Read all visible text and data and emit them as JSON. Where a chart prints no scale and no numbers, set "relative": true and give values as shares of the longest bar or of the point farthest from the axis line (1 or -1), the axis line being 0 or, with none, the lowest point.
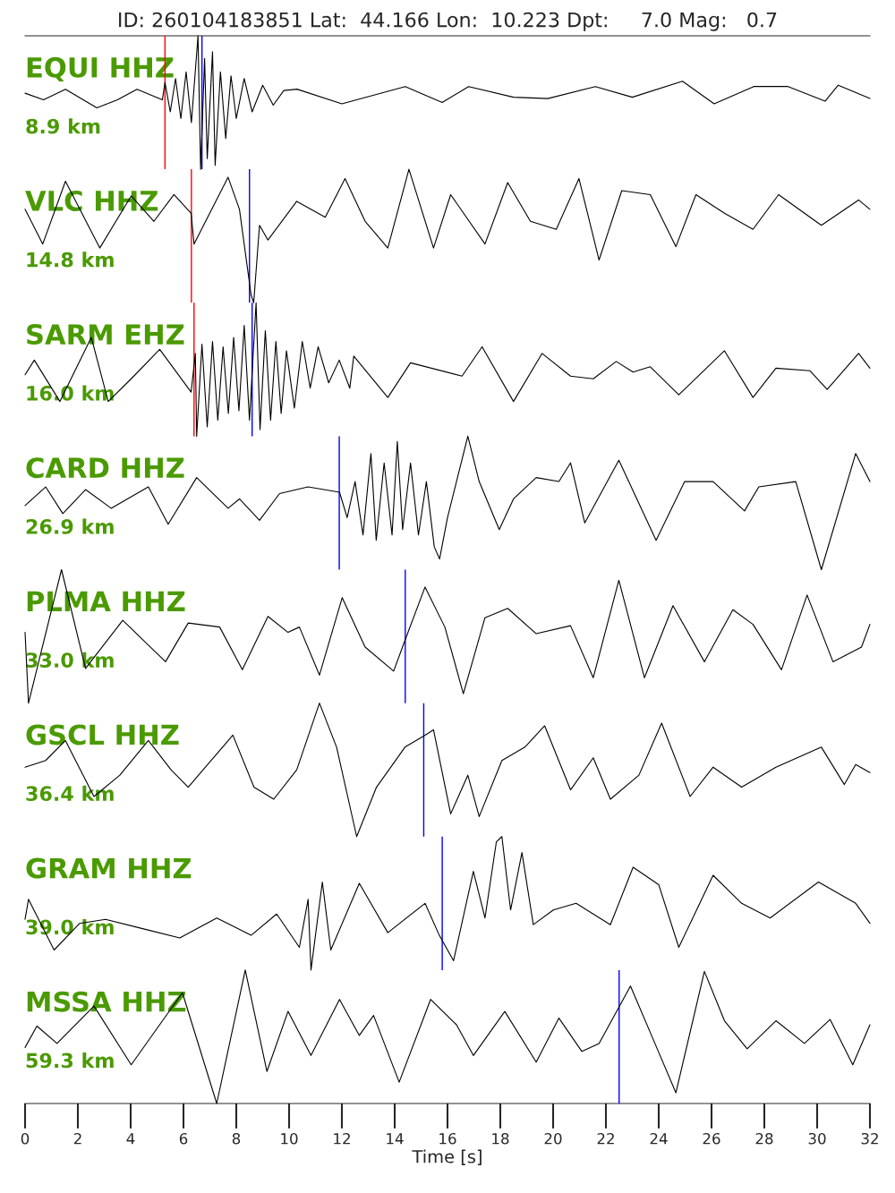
{
  "chart_data": [
    {
      "type": "line",
      "relative": true,
      "title": "EQUI HHZ",
      "subtitle": "8.9 km",
      "xticks": [
        0,
        2,
        4,
        6,
        8,
        10,
        12,
        14,
        16,
        18,
        20,
        22,
        24,
        26,
        28,
        30,
        32
      ],
      "annotations": [
        "ID: 260104183851 Lat:  44.166 Lon:  10.223 Dpt:     7.0 Mag:   0.7"
      ],
      "xlim": [
        0,
        32
      ],
      "tick_labels": false,
      "grid": false,
      "legend": false,
      "x": [
        0,
        0.7,
        1.53,
        2.72,
        3.5,
        4.24,
        5.2,
        5.3,
        5.5,
        5.7,
        5.9,
        6.1,
        6.3,
        6.55,
        6.65,
        6.8,
        6.9,
        7.1,
        7.2,
        7.4,
        7.6,
        7.8,
        8.0,
        8.3,
        8.6,
        9.0,
        9.4,
        9.8,
        10.3,
        12.0,
        14.4,
        15.8,
        16.8,
        18.5,
        19.8,
        21.6,
        23.0,
        24.9,
        26.1,
        27.6,
        28.9,
        30.3,
        30.8,
        32
      ],
      "series": [
        {
          "color": "#000000",
          "values": [
            0.57,
            0.52,
            0.6,
            0.46,
            0.52,
            0.6,
            0.52,
            0.65,
            0.43,
            0.68,
            0.38,
            0.73,
            0.35,
            1,
            0,
            0.83,
            0.08,
            0.88,
            0.03,
            0.73,
            0.23,
            0.7,
            0.38,
            0.68,
            0.43,
            0.63,
            0.48,
            0.59,
            0.6,
            0.49,
            0.62,
            0.5,
            0.62,
            0.54,
            0.53,
            0.62,
            0.54,
            0.66,
            0.49,
            0.62,
            0.62,
            0.51,
            0.63,
            0.53
          ]
        }
      ],
      "ref_lines": [
        {
          "axis": "x",
          "value": 5.3,
          "color": "#ff0000"
        },
        {
          "axis": "x",
          "value": 6.7,
          "color": "#0000ff"
        }
      ]
    },
    {
      "type": "line",
      "relative": true,
      "title": "VLC HHZ",
      "xticks": [
        0,
        2,
        4,
        6,
        8,
        10,
        12,
        14,
        16,
        18,
        20,
        22,
        24,
        26,
        28,
        30,
        32
      ],
      "subtitle": "14.8 km",
      "xlim": [
        0,
        32
      ],
      "tick_labels": false,
      "grid": false,
      "legend": false,
      "x": [
        0,
        0.67,
        1.53,
        2.83,
        4.02,
        4.88,
        5.64,
        6.29,
        6.4,
        7.69,
        8.12,
        8.56,
        8.66,
        8.88,
        9.2,
        10.29,
        11.37,
        12.12,
        12.88,
        13.74,
        14.54,
        15.47,
        16.12,
        17.42,
        18.28,
        19.14,
        20.12,
        20.98,
        21.74,
        22.6,
        23.68,
        24.65,
        25.41,
        26.49,
        27.57,
        28.54,
        30.16,
        31.57,
        32
      ],
      "series": [
        {
          "color": "#000000",
          "values": [
            0.7,
            0.44,
            0.91,
            0.41,
            0.8,
            0.61,
            0.81,
            0.67,
            0.44,
            0.94,
            0.7,
            0.06,
            0,
            0.58,
            0.47,
            0.76,
            0.64,
            0.93,
            0.61,
            0.41,
            1,
            0.41,
            0.81,
            0.44,
            0.9,
            0.61,
            0.55,
            0.93,
            0.32,
            0.84,
            0.81,
            0.42,
            0.81,
            0.67,
            0.55,
            0.81,
            0.58,
            0.77,
            0.7
          ]
        }
      ],
      "ref_lines": [
        {
          "axis": "x",
          "value": 6.3,
          "color": "#ff0000"
        },
        {
          "axis": "x",
          "value": 8.5,
          "color": "#0000ff"
        }
      ]
    },
    {
      "type": "line",
      "relative": true,
      "title": "SARM EHZ",
      "xticks": [
        0,
        2,
        4,
        6,
        8,
        10,
        12,
        14,
        16,
        18,
        20,
        22,
        24,
        26,
        28,
        30,
        32
      ],
      "subtitle": "16.0 km",
      "xlim": [
        0,
        32
      ],
      "tick_labels": false,
      "grid": false,
      "legend": false,
      "x": [
        0,
        0.35,
        1.32,
        2.51,
        3.15,
        4.02,
        5.1,
        6.29,
        6.45,
        6.5,
        6.7,
        6.9,
        7.1,
        7.3,
        7.5,
        7.7,
        7.9,
        8.1,
        8.3,
        8.5,
        8.75,
        8.9,
        9.1,
        9.3,
        9.5,
        9.7,
        9.9,
        10.2,
        10.5,
        10.8,
        11.1,
        11.5,
        11.9,
        12.3,
        12.45,
        13.74,
        14.6,
        16.55,
        17.31,
        18.5,
        19.58,
        20.66,
        21.52,
        22.39,
        23.03,
        23.68,
        24.76,
        26.49,
        27.57,
        28.44,
        29.73,
        30.38,
        31.57,
        32
      ],
      "series": [
        {
          "color": "#000000",
          "values": [
            0.46,
            0.57,
            0.26,
            0.74,
            0.26,
            0.43,
            0.65,
            0.33,
            0.62,
            0,
            0.69,
            0.07,
            0.71,
            0.12,
            0.67,
            0.17,
            0.74,
            0.19,
            0.83,
            0.12,
            1,
            0.05,
            0.79,
            0.12,
            0.71,
            0.17,
            0.64,
            0.21,
            0.71,
            0.36,
            0.67,
            0.4,
            0.57,
            0.36,
            0.6,
            0.29,
            0.55,
            0.45,
            0.67,
            0.26,
            0.62,
            0.45,
            0.43,
            0.56,
            0.48,
            0.52,
            0.31,
            0.64,
            0.29,
            0.51,
            0.49,
            0.35,
            0.62,
            0.51
          ]
        }
      ],
      "ref_lines": [
        {
          "axis": "x",
          "value": 6.4,
          "color": "#ff0000"
        },
        {
          "axis": "x",
          "value": 8.6,
          "color": "#0000ff"
        }
      ]
    },
    {
      "type": "line",
      "relative": true,
      "title": "CARD HHZ",
      "xticks": [
        0,
        2,
        4,
        6,
        8,
        10,
        12,
        14,
        16,
        18,
        20,
        22,
        24,
        26,
        28,
        30,
        32
      ],
      "subtitle": "26.9 km",
      "xlim": [
        0,
        32
      ],
      "tick_labels": false,
      "grid": false,
      "legend": false,
      "x": [
        0,
        0.78,
        1.43,
        2.29,
        3.26,
        4.67,
        5.42,
        6.5,
        7.69,
        8.12,
        8.88,
        9.64,
        10.72,
        11.91,
        12.2,
        12.5,
        12.8,
        13.1,
        13.3,
        13.6,
        13.9,
        14.1,
        14.3,
        14.6,
        14.9,
        15.2,
        15.5,
        15.7,
        16.0,
        16.77,
        17.2,
        17.96,
        18.5,
        19.36,
        20.22,
        20.66,
        21.2,
        22.49,
        23.9,
        24.98,
        26.06,
        27.25,
        27.79,
        29.19,
        30.16,
        31.46,
        32
      ],
      "series": [
        {
          "color": "#000000",
          "values": [
            0.48,
            0.62,
            0.42,
            0.6,
            0.46,
            0.62,
            0.34,
            0.69,
            0.46,
            0.53,
            0.37,
            0.57,
            0.62,
            0.58,
            0.39,
            0.66,
            0.26,
            0.87,
            0.22,
            0.8,
            0.26,
            0.96,
            0.3,
            0.8,
            0.26,
            0.66,
            0.17,
            0.08,
            0.39,
            1,
            0.66,
            0.3,
            0.53,
            0.69,
            0.66,
            0.8,
            0.35,
            0.82,
            0.22,
            0.66,
            0.66,
            0.44,
            0.62,
            0.66,
            0,
            0.87,
            0.66
          ]
        }
      ],
      "ref_lines": [
        {
          "axis": "x",
          "value": 11.9,
          "color": "#0000ff"
        }
      ]
    },
    {
      "type": "line",
      "relative": true,
      "title": "PLMA HHZ",
      "xticks": [
        0,
        2,
        4,
        6,
        8,
        10,
        12,
        14,
        16,
        18,
        20,
        22,
        24,
        26,
        28,
        30,
        32
      ],
      "subtitle": "33.0 km",
      "xlim": [
        0,
        32
      ],
      "tick_labels": false,
      "grid": false,
      "legend": false,
      "x": [
        0,
        0.13,
        1.38,
        2.29,
        3.7,
        5.32,
        6.18,
        7.37,
        8.23,
        9.2,
        9.96,
        10.39,
        11.15,
        12.01,
        12.88,
        13.96,
        14.39,
        15.15,
        15.9,
        16.6,
        17.42,
        18.28,
        19.36,
        20.66,
        21.52,
        22.49,
        23.46,
        24.54,
        25.73,
        26.81,
        27.57,
        28.65,
        29.62,
        30.6,
        31.68,
        32
      ],
      "series": [
        {
          "color": "#000000",
          "values": [
            0.53,
            0,
            1,
            0.26,
            0.62,
            0.31,
            0.6,
            0.57,
            0.25,
            0.65,
            0.53,
            0.57,
            0.21,
            0.79,
            0.42,
            0.24,
            0.47,
            0.87,
            0.57,
            0.07,
            0.64,
            0.71,
            0.52,
            0.58,
            0.19,
            0.92,
            0.19,
            0.73,
            0.31,
            0.7,
            0.59,
            0.25,
            0.81,
            0.31,
            0.42,
            0.59
          ]
        }
      ],
      "ref_lines": [
        {
          "axis": "x",
          "value": 14.4,
          "color": "#0000ff"
        }
      ]
    },
    {
      "type": "line",
      "relative": true,
      "title": "GSCL HHZ",
      "xticks": [
        0,
        2,
        4,
        6,
        8,
        10,
        12,
        14,
        16,
        18,
        20,
        22,
        24,
        26,
        28,
        30,
        32
      ],
      "subtitle": "36.4 km",
      "xlim": [
        0,
        32
      ],
      "tick_labels": false,
      "grid": false,
      "legend": false,
      "x": [
        0,
        0.78,
        1.53,
        2.61,
        3.59,
        4.67,
        5.53,
        6.18,
        6.83,
        7.87,
        8.67,
        9.42,
        10.29,
        11.15,
        11.8,
        12.56,
        13.31,
        14.39,
        15.15,
        15.47,
        16.12,
        16.77,
        17.2,
        18.06,
        18.93,
        19.68,
        20.66,
        21.52,
        22.17,
        23.25,
        24.11,
        25.19,
        26.06,
        27.14,
        28.44,
        30.16,
        31.03,
        31.46,
        32
      ],
      "series": [
        {
          "color": "#000000",
          "values": [
            0.52,
            0.57,
            0.72,
            0.3,
            0.46,
            0.72,
            0.5,
            0.37,
            0.52,
            0.76,
            0.37,
            0.28,
            0.5,
            1,
            0.67,
            0,
            0.37,
            0.67,
            0.76,
            0.8,
            0.17,
            0.46,
            0.15,
            0.57,
            0.67,
            0.83,
            0.35,
            0.59,
            0.28,
            0.46,
            0.85,
            0.3,
            0.52,
            0.37,
            0.52,
            0.67,
            0.39,
            0.54,
            0.48
          ]
        }
      ],
      "ref_lines": [
        {
          "axis": "x",
          "value": 15.1,
          "color": "#0000ff"
        }
      ]
    },
    {
      "type": "line",
      "relative": true,
      "title": "GRAM HHZ",
      "xticks": [
        0,
        2,
        4,
        6,
        8,
        10,
        12,
        14,
        16,
        18,
        20,
        22,
        24,
        26,
        28,
        30,
        32
      ],
      "subtitle": "39.0 km",
      "xlim": [
        0,
        32
      ],
      "tick_labels": false,
      "grid": false,
      "legend": false,
      "x": [
        0,
        0.13,
        1.1,
        2.07,
        3.05,
        4.45,
        5.86,
        7.26,
        8.56,
        9.53,
        10.39,
        10.72,
        10.83,
        11.26,
        11.58,
        12.66,
        13.74,
        15.15,
        15.69,
        16.23,
        16.98,
        17.42,
        17.85,
        18.06,
        18.39,
        18.82,
        19.25,
        20.01,
        20.87,
        22.17,
        23.03,
        24.0,
        24.76,
        26.06,
        27.14,
        28.22,
        30.05,
        31.46,
        32
      ],
      "series": [
        {
          "color": "#000000",
          "values": [
            0.38,
            0.53,
            0.15,
            0.35,
            0.38,
            0.31,
            0.24,
            0.39,
            0.26,
            0.42,
            0.17,
            0.53,
            0,
            0.66,
            0.15,
            0.65,
            0.28,
            0.5,
            0.26,
            0.07,
            0.74,
            0.39,
            0.96,
            1,
            0.45,
            0.88,
            0.34,
            0.45,
            0.5,
            0.34,
            0.77,
            0.64,
            0.17,
            0.71,
            0.5,
            0.39,
            0.66,
            0.5,
            0.35
          ]
        }
      ],
      "ref_lines": [
        {
          "axis": "x",
          "value": 15.8,
          "color": "#0000ff"
        }
      ]
    },
    {
      "type": "line",
      "relative": true,
      "title": "MSSA HHZ",
      "subtitle": "59.3 km",
      "xlabel": "Time [s]",
      "xlim": [
        0,
        32
      ],
      "tick_labels": "x",
      "grid": false,
      "legend": false,
      "x": [
        0,
        0.45,
        1.21,
        2.61,
        4.02,
        5.96,
        7.26,
        8.34,
        9.16,
        9.96,
        10.83,
        11.91,
        12.66,
        13.2,
        14.17,
        15.36,
        16.34,
        16.98,
        18.17,
        19.36,
        20.22,
        21.09,
        21.74,
        22.93,
        23.9,
        24.65,
        25.73,
        26.49,
        27.35,
        28.44,
        29.52,
        30.49,
        31.35,
        32
      ],
      "series": [
        {
          "color": "#000000",
          "values": [
            0.42,
            0.58,
            0.45,
            0.73,
            0.29,
            0.83,
            0,
            1,
            0.24,
            0.69,
            0.36,
            0.78,
            0.51,
            0.66,
            0.16,
            0.78,
            0.59,
            0.36,
            0.69,
            0.31,
            0.64,
            0.39,
            0.45,
            0.88,
            0.43,
            0.08,
            0.99,
            0.62,
            0.41,
            0.62,
            0.45,
            0.63,
            0.29,
            0.59
          ]
        }
      ],
      "ref_lines": [
        {
          "axis": "x",
          "value": 22.5,
          "color": "#0000ff"
        }
      ],
      "xticks": [
        0,
        2,
        4,
        6,
        8,
        10,
        12,
        14,
        16,
        18,
        20,
        22,
        24,
        26,
        28,
        30,
        32
      ]
    }
  ]
}
